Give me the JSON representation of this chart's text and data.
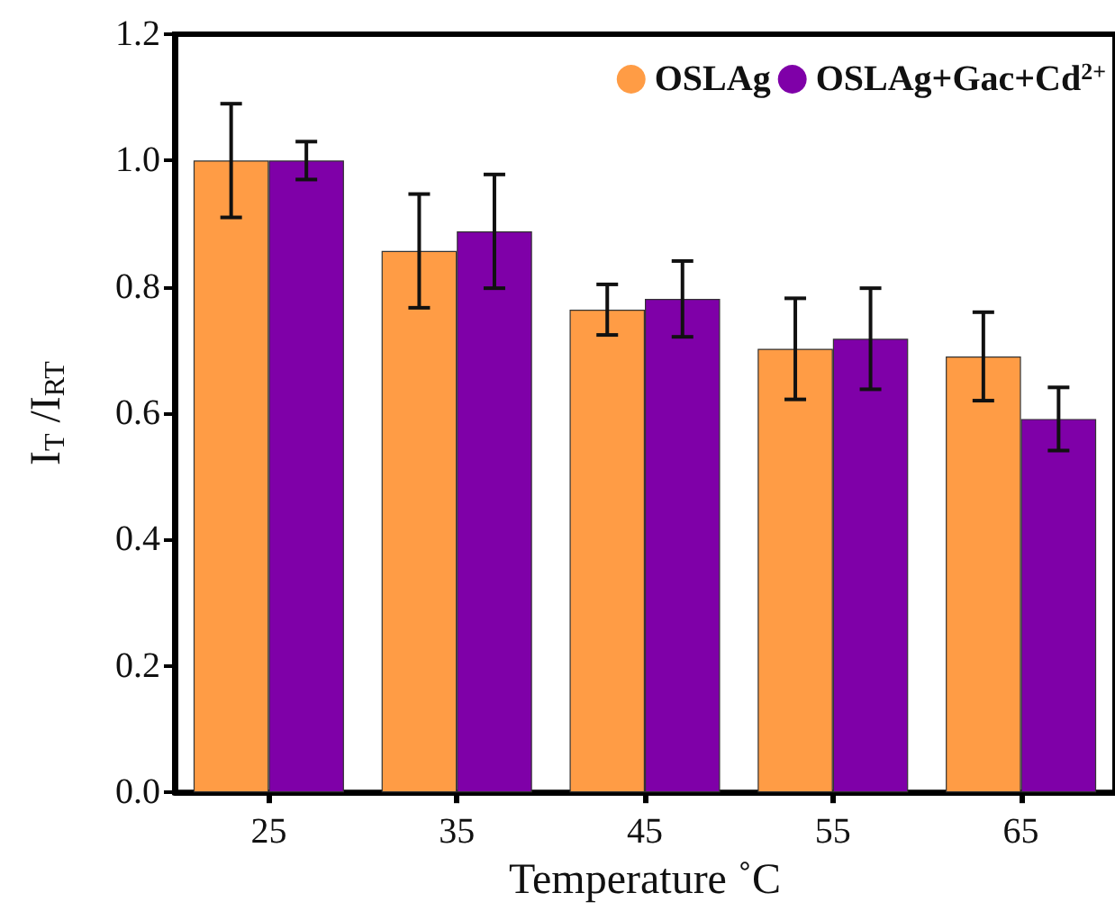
{
  "chart_data": {
    "type": "bar",
    "xlabel": "Temperature ˚C",
    "ylabel": "I$_{T}$ /I$_{RT}$",
    "categories": [
      "25",
      "35",
      "45",
      "55",
      "65"
    ],
    "series": [
      {
        "name": "OSLAg",
        "color": "#ff9c45",
        "values": [
          1.0,
          0.857,
          0.764,
          0.702,
          0.69
        ],
        "errors": [
          0.09,
          0.09,
          0.04,
          0.08,
          0.07
        ]
      },
      {
        "name": "OSLAg+Gac+Cd$^{2+}$",
        "color": "#7f00a8",
        "values": [
          1.0,
          0.888,
          0.781,
          0.718,
          0.591
        ],
        "errors": [
          0.03,
          0.09,
          0.06,
          0.08,
          0.05
        ]
      }
    ],
    "ylim": [
      0,
      1.2
    ],
    "yticks": [
      {
        "value": 0,
        "label": "0.0"
      },
      {
        "value": 0.2,
        "label": "0.2"
      },
      {
        "value": 0.4,
        "label": "0.4"
      },
      {
        "value": 0.6,
        "label": "0.6"
      },
      {
        "value": 0.8,
        "label": "0.8"
      },
      {
        "value": 1,
        "label": "1.0"
      },
      {
        "value": 1.2,
        "label": "1.2"
      }
    ],
    "grid": false,
    "legend": "top right"
  }
}
